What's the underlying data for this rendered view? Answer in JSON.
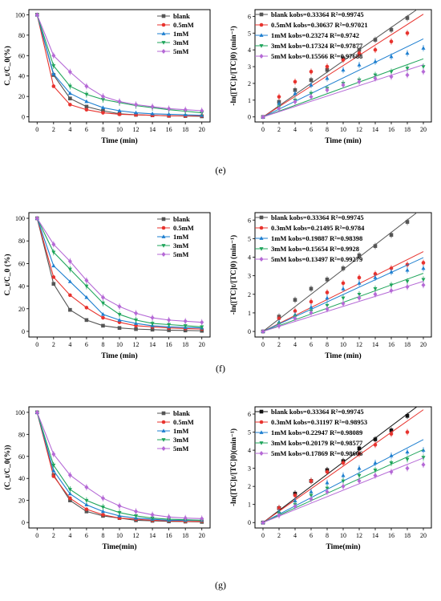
{
  "figure": {
    "panel_labels": [
      "(e)",
      "(f)",
      "(g)"
    ]
  },
  "chart_data": [
    {
      "type": "line",
      "xlabel": "Time (min)",
      "ylabel": "C_t/C_0(%)",
      "xlim": [
        -1,
        21
      ],
      "ylim": [
        -5,
        105
      ],
      "xticks": [
        0,
        2,
        4,
        6,
        8,
        10,
        12,
        14,
        16,
        18,
        20
      ],
      "yticks": [
        0,
        20,
        40,
        60,
        80,
        100
      ],
      "legend_position": "top-right",
      "x": [
        0,
        2,
        4,
        6,
        8,
        10,
        12,
        14,
        16,
        18,
        20
      ],
      "series": [
        {
          "name": "blank",
          "color": "#555555",
          "marker": "square",
          "values": [
            100,
            41,
            18,
            10,
            6,
            3,
            2,
            1.5,
            1,
            0.8,
            0.5
          ]
        },
        {
          "name": "0.5mM",
          "color": "#e8332e",
          "marker": "circle",
          "values": [
            100,
            30,
            12,
            7,
            4,
            2.5,
            2,
            1.5,
            1,
            1,
            1
          ]
        },
        {
          "name": "1mM",
          "color": "#1e7fd0",
          "marker": "triangle",
          "values": [
            100,
            42,
            23,
            15,
            9,
            6,
            4,
            3,
            2.5,
            2,
            1.5
          ]
        },
        {
          "name": "3mM",
          "color": "#1fa55b",
          "marker": "triangle-down",
          "values": [
            100,
            50,
            30,
            22,
            17,
            14,
            11,
            9,
            7,
            5.5,
            4
          ]
        },
        {
          "name": "5mM",
          "color": "#b569d6",
          "marker": "diamond",
          "values": [
            100,
            60,
            44,
            30,
            20,
            15,
            12,
            10,
            8,
            7,
            6
          ]
        }
      ]
    },
    {
      "type": "scatter",
      "xlabel": "Time (min)",
      "ylabel": "-ln([TC]t/[TC]0) (min⁻¹)",
      "xlim": [
        -1,
        21
      ],
      "ylim": [
        -0.3,
        6.4
      ],
      "xticks": [
        0,
        2,
        4,
        6,
        8,
        10,
        12,
        14,
        16,
        18,
        20
      ],
      "yticks": [
        0,
        1,
        2,
        3,
        4,
        5,
        6
      ],
      "legend_position": "top-left",
      "x": [
        0,
        2,
        4,
        6,
        8,
        10,
        12,
        14,
        16,
        18,
        20
      ],
      "series": [
        {
          "name": "blank",
          "legend": "blank   kobs=0.33364 R²=0.99745",
          "color": "#555555",
          "marker": "square",
          "k": 0.33364,
          "values": [
            0,
            0.9,
            1.6,
            2.2,
            2.8,
            3.5,
            4.0,
            4.6,
            5.2,
            5.9,
            null
          ]
        },
        {
          "name": "0.5mM",
          "legend": "0.5mM  kobs=0.30637 R²=0.97021",
          "color": "#e8332e",
          "marker": "circle",
          "k": 0.30637,
          "values": [
            0,
            1.2,
            2.1,
            2.7,
            3.0,
            3.4,
            3.8,
            4.0,
            4.5,
            5.0,
            null
          ]
        },
        {
          "name": "1mM",
          "legend": "1mM    kobs=0.23274 R²=0.9742",
          "color": "#1e7fd0",
          "marker": "triangle",
          "k": 0.23274,
          "values": [
            0,
            0.8,
            1.4,
            1.9,
            2.3,
            2.8,
            3.1,
            3.3,
            3.6,
            3.8,
            4.1
          ]
        },
        {
          "name": "3mM",
          "legend": "3mM    kobs=0.17324 R²=0.97877",
          "color": "#1fa55b",
          "marker": "triangle-down",
          "k": 0.17324,
          "values": [
            0,
            0.6,
            1.0,
            1.4,
            1.7,
            2.0,
            2.2,
            2.5,
            2.7,
            2.9,
            3.0
          ]
        },
        {
          "name": "5mM",
          "legend": "5mM    kobs=0.15566 R²=0.97688",
          "color": "#b569d6",
          "marker": "diamond",
          "k": 0.15566,
          "values": [
            0,
            0.5,
            0.9,
            1.2,
            1.6,
            1.9,
            2.1,
            2.3,
            2.4,
            2.5,
            2.7
          ]
        }
      ]
    },
    {
      "type": "line",
      "xlabel": "Time (min)",
      "ylabel": "C_t/C_0 (%)",
      "xlim": [
        -1,
        21
      ],
      "ylim": [
        -5,
        105
      ],
      "xticks": [
        0,
        2,
        4,
        6,
        8,
        10,
        12,
        14,
        16,
        18,
        20
      ],
      "yticks": [
        0,
        20,
        40,
        60,
        80,
        100
      ],
      "legend_position": "top-right",
      "x": [
        0,
        2,
        4,
        6,
        8,
        10,
        12,
        14,
        16,
        18,
        20
      ],
      "series": [
        {
          "name": "blank",
          "color": "#555555",
          "marker": "square",
          "values": [
            100,
            42,
            19,
            10,
            5,
            3,
            2,
            1.5,
            1,
            0.8,
            0.5
          ]
        },
        {
          "name": "0.5mM",
          "color": "#e8332e",
          "marker": "circle",
          "values": [
            100,
            48,
            32,
            21,
            12,
            8,
            5,
            4,
            3,
            2.5,
            2
          ]
        },
        {
          "name": "1mM",
          "color": "#1e7fd0",
          "marker": "triangle",
          "values": [
            100,
            58,
            44,
            30,
            15,
            10,
            7,
            5,
            4,
            3.5,
            3
          ]
        },
        {
          "name": "3mM",
          "color": "#1fa55b",
          "marker": "triangle-down",
          "values": [
            100,
            70,
            55,
            40,
            25,
            15,
            10,
            7,
            6,
            5,
            4
          ]
        },
        {
          "name": "5mM",
          "color": "#b569d6",
          "marker": "diamond",
          "values": [
            100,
            77,
            62,
            45,
            30,
            22,
            16,
            12,
            10,
            9,
            8
          ]
        }
      ]
    },
    {
      "type": "scatter",
      "xlabel": "Time (min)",
      "ylabel": "-ln([TC]t/[TC]0) (min⁻¹)",
      "xlim": [
        -1,
        21
      ],
      "ylim": [
        -0.3,
        6.4
      ],
      "xticks": [
        0,
        2,
        4,
        6,
        8,
        10,
        12,
        14,
        16,
        18,
        20
      ],
      "yticks": [
        0,
        1,
        2,
        3,
        4,
        5,
        6
      ],
      "legend_position": "top-left",
      "x": [
        0,
        2,
        4,
        6,
        8,
        10,
        12,
        14,
        16,
        18,
        20
      ],
      "series": [
        {
          "name": "blank",
          "legend": "blank   kobs=0.33364 R²=0.99745",
          "color": "#555555",
          "marker": "square",
          "k": 0.33364,
          "values": [
            0,
            0.8,
            1.7,
            2.3,
            2.8,
            3.4,
            4.1,
            4.6,
            5.2,
            5.9,
            null
          ]
        },
        {
          "name": "0.3mM",
          "legend": "0.3mM  kobs=0.21495 R²=0.9784",
          "color": "#e8332e",
          "marker": "circle",
          "k": 0.21495,
          "values": [
            0,
            0.7,
            1.1,
            1.6,
            2.1,
            2.6,
            2.9,
            3.1,
            3.4,
            3.6,
            3.7
          ]
        },
        {
          "name": "1mM",
          "legend": "1mM    kobs=0.19887 R²=0.98398",
          "color": "#1e7fd0",
          "marker": "triangle",
          "k": 0.19887,
          "values": [
            0,
            0.5,
            0.9,
            1.3,
            1.8,
            2.3,
            2.6,
            2.9,
            3.2,
            3.3,
            3.4
          ]
        },
        {
          "name": "3mM",
          "legend": "3mM    kobs=0.15654 R²=0.9928",
          "color": "#1fa55b",
          "marker": "triangle-down",
          "k": 0.15654,
          "values": [
            0,
            0.4,
            0.8,
            1.1,
            1.4,
            1.8,
            2.0,
            2.3,
            2.5,
            2.7,
            2.8
          ]
        },
        {
          "name": "5mM",
          "legend": "5mM    kobs=0.13497 R²=0.99279",
          "color": "#b569d6",
          "marker": "diamond",
          "k": 0.13497,
          "values": [
            0,
            0.3,
            0.7,
            1.0,
            1.2,
            1.5,
            1.8,
            2.0,
            2.2,
            2.4,
            2.5
          ]
        }
      ]
    },
    {
      "type": "line",
      "xlabel": "Time(min)",
      "ylabel": "(C_t/C_0(%))",
      "xlim": [
        -1,
        21
      ],
      "ylim": [
        -5,
        105
      ],
      "xticks": [
        0,
        2,
        4,
        6,
        8,
        10,
        12,
        14,
        16,
        18,
        20
      ],
      "yticks": [
        0,
        20,
        40,
        60,
        80,
        100
      ],
      "legend_position": "top-right",
      "x": [
        0,
        2,
        4,
        6,
        8,
        10,
        12,
        14,
        16,
        18,
        20
      ],
      "series": [
        {
          "name": "blank",
          "color": "#555555",
          "marker": "square",
          "values": [
            100,
            43,
            20,
            10,
            6,
            4,
            2,
            1.5,
            1,
            0.8,
            0.5
          ]
        },
        {
          "name": "0.5mM",
          "color": "#e8332e",
          "marker": "circle",
          "values": [
            100,
            42,
            22,
            12,
            7,
            4,
            3,
            2,
            1.5,
            1,
            1
          ]
        },
        {
          "name": "1mM",
          "color": "#1e7fd0",
          "marker": "triangle",
          "values": [
            100,
            47,
            26,
            16,
            10,
            6,
            4,
            3,
            2,
            2,
            2
          ]
        },
        {
          "name": "3mM",
          "color": "#1fa55b",
          "marker": "triangle-down",
          "values": [
            100,
            52,
            30,
            20,
            14,
            9,
            6,
            4,
            3,
            2.5,
            2
          ]
        },
        {
          "name": "5mM",
          "color": "#b569d6",
          "marker": "diamond",
          "values": [
            100,
            62,
            43,
            32,
            22,
            15,
            10,
            7,
            5,
            4,
            3.5
          ]
        }
      ]
    },
    {
      "type": "scatter",
      "xlabel": "Time(min)",
      "ylabel": "-ln([TC]t/[TC]0)(min⁻¹)",
      "xlim": [
        -1,
        21
      ],
      "ylim": [
        -0.3,
        6.4
      ],
      "xticks": [
        0,
        2,
        4,
        6,
        8,
        10,
        12,
        14,
        16,
        18,
        20
      ],
      "yticks": [
        0,
        1,
        2,
        3,
        4,
        5,
        6
      ],
      "legend_position": "top-left",
      "x": [
        0,
        2,
        4,
        6,
        8,
        10,
        12,
        14,
        16,
        18,
        20
      ],
      "series": [
        {
          "name": "blank",
          "legend": "blank   kobs=0.33364 R²=0.99745",
          "color": "#111111",
          "marker": "square",
          "k": 0.33364,
          "values": [
            0,
            0.8,
            1.6,
            2.3,
            2.9,
            3.4,
            4.1,
            4.6,
            5.1,
            5.9,
            null
          ]
        },
        {
          "name": "0.3mM",
          "legend": "0.3mM  kobs=0.31197 R²=0.98953",
          "color": "#e8332e",
          "marker": "circle",
          "k": 0.31197,
          "values": [
            0,
            0.8,
            1.5,
            2.3,
            2.8,
            3.3,
            3.8,
            4.3,
            4.9,
            5.0,
            null
          ]
        },
        {
          "name": "1mM",
          "legend": "1mM    kobs=0.22947 R²=0.98089",
          "color": "#1e7fd0",
          "marker": "triangle",
          "k": 0.22947,
          "values": [
            0,
            0.6,
            1.2,
            1.7,
            2.2,
            2.6,
            3.0,
            3.3,
            3.7,
            3.9,
            4.0
          ]
        },
        {
          "name": "3mM",
          "legend": "3mM    kobs=0.20179 R²=0.98577",
          "color": "#1fa55b",
          "marker": "triangle-down",
          "k": 0.20179,
          "values": [
            0,
            0.5,
            1.0,
            1.5,
            1.9,
            2.3,
            2.6,
            2.9,
            3.3,
            3.5,
            3.6
          ]
        },
        {
          "name": "5mM",
          "legend": "5mM    kobs=0.17869 R²=0.98606",
          "color": "#b569d6",
          "marker": "diamond",
          "k": 0.17869,
          "values": [
            0,
            0.4,
            0.9,
            1.3,
            1.7,
            2.0,
            2.3,
            2.6,
            2.8,
            3.0,
            3.2
          ]
        }
      ]
    }
  ]
}
